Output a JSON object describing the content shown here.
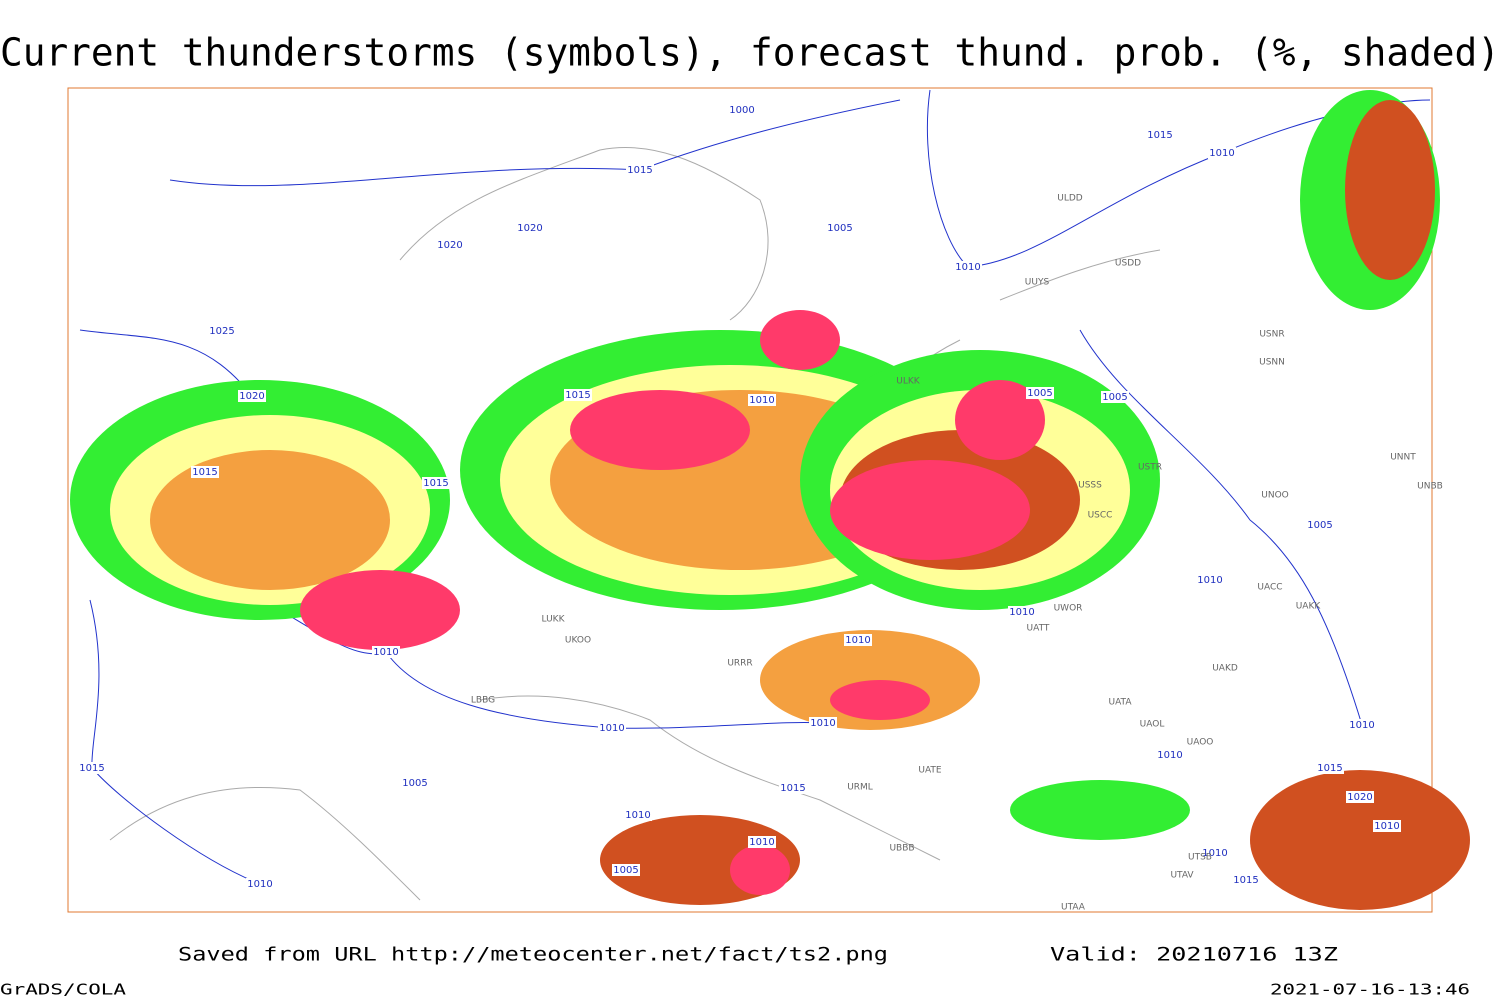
{
  "header": {
    "title": "Current thunderstorms (symbols), forecast thund. prob. (%, shaded)"
  },
  "footer": {
    "source": "Saved from URL http://meteocenter.net/fact/ts2.png",
    "valid": "Valid: 20210716 13Z",
    "software": "GrADS/COLA",
    "timestamp": "2021-07-16-13:46"
  },
  "isobar_labels": [
    "1000",
    "1015",
    "1010",
    "1015",
    "1020",
    "1020",
    "1025",
    "1005",
    "1010",
    "1020",
    "1015",
    "1010",
    "1005",
    "1005",
    "1015",
    "1015",
    "1005",
    "1010",
    "1010",
    "1010",
    "1010",
    "1010",
    "1010",
    "1010",
    "1010",
    "1015",
    "1015",
    "1005",
    "1015",
    "1020",
    "1010",
    "1010",
    "1010",
    "1010",
    "1005",
    "1015",
    "1010"
  ],
  "station_labels": [
    "ULDD",
    "UUYS",
    "USDD",
    "ULKK",
    "USSS",
    "USCC",
    "USTR",
    "LUKK",
    "UKOO",
    "LBBG",
    "URRR",
    "URML",
    "UATE",
    "UATA",
    "UAOL",
    "UAOO",
    "UACC",
    "UAKK",
    "UAKD",
    "UNOO",
    "UNNT",
    "UNBB",
    "UWOR",
    "UATT",
    "UBBB",
    "UTAA",
    "UTSB",
    "UTAV",
    "USNN",
    "USNR"
  ]
}
